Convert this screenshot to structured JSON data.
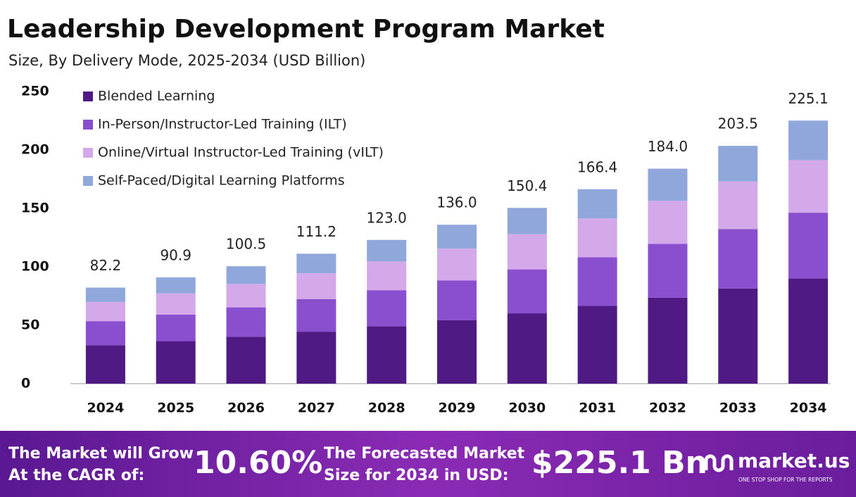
{
  "chart_data": {
    "type": "stacked_bar",
    "title": "Leadership Development Program Market",
    "subtitle": "Size, By Delivery Mode, 2025-2034 (USD Billion)",
    "categories": [
      "2024",
      "2025",
      "2026",
      "2027",
      "2028",
      "2029",
      "2030",
      "2031",
      "2032",
      "2033",
      "2034"
    ],
    "series": [
      {
        "name": "Blended Learning",
        "color": "#4f1a84",
        "values": [
          32.9,
          36.4,
          40.2,
          44.5,
          49.2,
          54.4,
          60.2,
          66.6,
          73.6,
          81.4,
          90.0
        ]
      },
      {
        "name": "In-Person/Instructor-Led Training (ILT)",
        "color": "#8a4fcf",
        "values": [
          20.6,
          22.7,
          25.1,
          27.8,
          30.8,
          34.0,
          37.6,
          41.6,
          46.0,
          50.9,
          56.3
        ]
      },
      {
        "name": "Online/Virtual Instructor-Led Training (vILT)",
        "color": "#d3a9ea",
        "values": [
          16.4,
          18.2,
          20.1,
          22.2,
          24.6,
          27.2,
          30.1,
          33.3,
          36.8,
          40.7,
          45.0
        ]
      },
      {
        "name": "Self-Paced/Digital Learning Platforms",
        "color": "#8fa7db",
        "values": [
          12.3,
          13.6,
          15.1,
          16.7,
          18.4,
          20.4,
          22.5,
          24.9,
          27.6,
          30.5,
          33.8
        ]
      }
    ],
    "total_labels": [
      "82.2",
      "90.9",
      "100.5",
      "111.2",
      "123.0",
      "136.0",
      "150.4",
      "166.4",
      "184.0",
      "203.5",
      "225.1"
    ],
    "ylim": [
      0,
      250
    ],
    "yticks": [
      0,
      50,
      100,
      150,
      200,
      250
    ],
    "grid": false,
    "legend": "top-left"
  },
  "footer": {
    "cagr_lines": [
      "The Market will Grow",
      "At the CAGR of:"
    ],
    "cagr": "10.60%",
    "forecast_lines": [
      "The Forecasted Market",
      "Size for 2034 in USD:"
    ],
    "forecast": "$225.1 Bn",
    "brand": "market.us",
    "tagline": "ONE STOP SHOP FOR THE REPORTS"
  }
}
